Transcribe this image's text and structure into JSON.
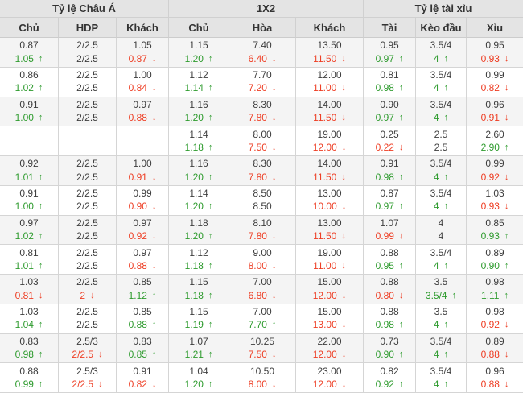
{
  "colors": {
    "trend_up_green": "#2e9b2e",
    "trend_down_red": "#ee3d23",
    "header_bg": "#e4e4e4",
    "stripe_bg": "#f4f4f4",
    "border": "#d5d5d5",
    "text": "#3e3e3e"
  },
  "icons": {
    "trend_up": "↑",
    "trend_down": "↓"
  },
  "table": {
    "groups": [
      {
        "label": "Tỷ lệ Châu Á"
      },
      {
        "label": "1X2"
      },
      {
        "label": "Tỷ lệ tài xỉu"
      }
    ],
    "columns": [
      "Chủ",
      "HDP",
      "Khách",
      "Chủ",
      "Hòa",
      "Khách",
      "Tài",
      "Kèo đầu",
      "Xỉu"
    ],
    "rows": [
      {
        "cells": [
          {
            "top": "0.87",
            "bottom": "1.05",
            "trend": "up"
          },
          {
            "top": "2/2.5",
            "bottom": "2/2.5",
            "trend": "none"
          },
          {
            "top": "1.05",
            "bottom": "0.87",
            "trend": "down"
          },
          {
            "top": "1.15",
            "bottom": "1.20",
            "trend": "up"
          },
          {
            "top": "7.40",
            "bottom": "6.40",
            "trend": "down"
          },
          {
            "top": "13.50",
            "bottom": "11.50",
            "trend": "down"
          },
          {
            "top": "0.95",
            "bottom": "0.97",
            "trend": "up"
          },
          {
            "top": "3.5/4",
            "bottom": "4",
            "trend": "up"
          },
          {
            "top": "0.95",
            "bottom": "0.93",
            "trend": "down"
          }
        ]
      },
      {
        "cells": [
          {
            "top": "0.86",
            "bottom": "1.02",
            "trend": "up"
          },
          {
            "top": "2/2.5",
            "bottom": "2/2.5",
            "trend": "none"
          },
          {
            "top": "1.00",
            "bottom": "0.84",
            "trend": "down"
          },
          {
            "top": "1.12",
            "bottom": "1.14",
            "trend": "up"
          },
          {
            "top": "7.70",
            "bottom": "7.20",
            "trend": "down"
          },
          {
            "top": "12.00",
            "bottom": "11.00",
            "trend": "down"
          },
          {
            "top": "0.81",
            "bottom": "0.98",
            "trend": "up"
          },
          {
            "top": "3.5/4",
            "bottom": "4",
            "trend": "up"
          },
          {
            "top": "0.99",
            "bottom": "0.82",
            "trend": "down"
          }
        ]
      },
      {
        "cells": [
          {
            "top": "0.91",
            "bottom": "1.00",
            "trend": "up"
          },
          {
            "top": "2/2.5",
            "bottom": "2/2.5",
            "trend": "none"
          },
          {
            "top": "0.97",
            "bottom": "0.88",
            "trend": "down"
          },
          {
            "top": "1.16",
            "bottom": "1.20",
            "trend": "up"
          },
          {
            "top": "8.30",
            "bottom": "7.80",
            "trend": "down"
          },
          {
            "top": "14.00",
            "bottom": "11.50",
            "trend": "down"
          },
          {
            "top": "0.90",
            "bottom": "0.97",
            "trend": "up"
          },
          {
            "top": "3.5/4",
            "bottom": "4",
            "trend": "up"
          },
          {
            "top": "0.96",
            "bottom": "0.91",
            "trend": "down"
          }
        ]
      },
      {
        "cells": [
          {
            "top": "",
            "bottom": "",
            "trend": "none"
          },
          {
            "top": "",
            "bottom": "",
            "trend": "none"
          },
          {
            "top": "",
            "bottom": "",
            "trend": "none"
          },
          {
            "top": "1.14",
            "bottom": "1.18",
            "trend": "up"
          },
          {
            "top": "8.00",
            "bottom": "7.50",
            "trend": "down"
          },
          {
            "top": "19.00",
            "bottom": "12.00",
            "trend": "down"
          },
          {
            "top": "0.25",
            "bottom": "0.22",
            "trend": "down"
          },
          {
            "top": "2.5",
            "bottom": "2.5",
            "trend": "none"
          },
          {
            "top": "2.60",
            "bottom": "2.90",
            "trend": "up"
          }
        ]
      },
      {
        "cells": [
          {
            "top": "0.92",
            "bottom": "1.01",
            "trend": "up"
          },
          {
            "top": "2/2.5",
            "bottom": "2/2.5",
            "trend": "none"
          },
          {
            "top": "1.00",
            "bottom": "0.91",
            "trend": "down"
          },
          {
            "top": "1.16",
            "bottom": "1.20",
            "trend": "up"
          },
          {
            "top": "8.30",
            "bottom": "7.80",
            "trend": "down"
          },
          {
            "top": "14.00",
            "bottom": "11.50",
            "trend": "down"
          },
          {
            "top": "0.91",
            "bottom": "0.98",
            "trend": "up"
          },
          {
            "top": "3.5/4",
            "bottom": "4",
            "trend": "up"
          },
          {
            "top": "0.99",
            "bottom": "0.92",
            "trend": "down"
          }
        ]
      },
      {
        "cells": [
          {
            "top": "0.91",
            "bottom": "1.00",
            "trend": "up"
          },
          {
            "top": "2/2.5",
            "bottom": "2/2.5",
            "trend": "none"
          },
          {
            "top": "0.99",
            "bottom": "0.90",
            "trend": "down"
          },
          {
            "top": "1.14",
            "bottom": "1.20",
            "trend": "up"
          },
          {
            "top": "8.50",
            "bottom": "8.50",
            "trend": "none"
          },
          {
            "top": "13.00",
            "bottom": "10.00",
            "trend": "down"
          },
          {
            "top": "0.87",
            "bottom": "0.97",
            "trend": "up"
          },
          {
            "top": "3.5/4",
            "bottom": "4",
            "trend": "up"
          },
          {
            "top": "1.03",
            "bottom": "0.93",
            "trend": "down"
          }
        ]
      },
      {
        "cells": [
          {
            "top": "0.97",
            "bottom": "1.02",
            "trend": "up"
          },
          {
            "top": "2/2.5",
            "bottom": "2/2.5",
            "trend": "none"
          },
          {
            "top": "0.97",
            "bottom": "0.92",
            "trend": "down"
          },
          {
            "top": "1.18",
            "bottom": "1.20",
            "trend": "up"
          },
          {
            "top": "8.10",
            "bottom": "7.80",
            "trend": "down"
          },
          {
            "top": "13.00",
            "bottom": "11.50",
            "trend": "down"
          },
          {
            "top": "1.07",
            "bottom": "0.99",
            "trend": "down"
          },
          {
            "top": "4",
            "bottom": "4",
            "trend": "none"
          },
          {
            "top": "0.85",
            "bottom": "0.93",
            "trend": "up"
          }
        ]
      },
      {
        "cells": [
          {
            "top": "0.81",
            "bottom": "1.01",
            "trend": "up"
          },
          {
            "top": "2/2.5",
            "bottom": "2/2.5",
            "trend": "none"
          },
          {
            "top": "0.97",
            "bottom": "0.88",
            "trend": "down"
          },
          {
            "top": "1.12",
            "bottom": "1.18",
            "trend": "up"
          },
          {
            "top": "9.00",
            "bottom": "8.00",
            "trend": "down"
          },
          {
            "top": "19.00",
            "bottom": "11.00",
            "trend": "down"
          },
          {
            "top": "0.88",
            "bottom": "0.95",
            "trend": "up"
          },
          {
            "top": "3.5/4",
            "bottom": "4",
            "trend": "up"
          },
          {
            "top": "0.89",
            "bottom": "0.90",
            "trend": "up"
          }
        ]
      },
      {
        "cells": [
          {
            "top": "1.03",
            "bottom": "0.81",
            "trend": "down"
          },
          {
            "top": "2/2.5",
            "bottom": "2",
            "trend": "down"
          },
          {
            "top": "0.85",
            "bottom": "1.12",
            "trend": "up"
          },
          {
            "top": "1.15",
            "bottom": "1.18",
            "trend": "up"
          },
          {
            "top": "7.00",
            "bottom": "6.80",
            "trend": "down"
          },
          {
            "top": "15.00",
            "bottom": "12.00",
            "trend": "down"
          },
          {
            "top": "0.88",
            "bottom": "0.80",
            "trend": "down"
          },
          {
            "top": "3.5",
            "bottom": "3.5/4",
            "trend": "up"
          },
          {
            "top": "0.98",
            "bottom": "1.11",
            "trend": "up"
          }
        ]
      },
      {
        "cells": [
          {
            "top": "1.03",
            "bottom": "1.04",
            "trend": "up"
          },
          {
            "top": "2/2.5",
            "bottom": "2/2.5",
            "trend": "none"
          },
          {
            "top": "0.85",
            "bottom": "0.88",
            "trend": "up"
          },
          {
            "top": "1.15",
            "bottom": "1.19",
            "trend": "up"
          },
          {
            "top": "7.00",
            "bottom": "7.70",
            "trend": "up"
          },
          {
            "top": "15.00",
            "bottom": "13.00",
            "trend": "down"
          },
          {
            "top": "0.88",
            "bottom": "0.98",
            "trend": "up"
          },
          {
            "top": "3.5",
            "bottom": "4",
            "trend": "up"
          },
          {
            "top": "0.98",
            "bottom": "0.92",
            "trend": "down"
          }
        ]
      },
      {
        "cells": [
          {
            "top": "0.83",
            "bottom": "0.98",
            "trend": "up"
          },
          {
            "top": "2.5/3",
            "bottom": "2/2.5",
            "trend": "down"
          },
          {
            "top": "0.83",
            "bottom": "0.85",
            "trend": "up"
          },
          {
            "top": "1.07",
            "bottom": "1.21",
            "trend": "up"
          },
          {
            "top": "10.25",
            "bottom": "7.50",
            "trend": "down"
          },
          {
            "top": "22.00",
            "bottom": "12.00",
            "trend": "down"
          },
          {
            "top": "0.73",
            "bottom": "0.90",
            "trend": "up"
          },
          {
            "top": "3.5/4",
            "bottom": "4",
            "trend": "up"
          },
          {
            "top": "0.89",
            "bottom": "0.88",
            "trend": "down"
          }
        ]
      },
      {
        "cells": [
          {
            "top": "0.88",
            "bottom": "0.99",
            "trend": "up"
          },
          {
            "top": "2.5/3",
            "bottom": "2/2.5",
            "trend": "down"
          },
          {
            "top": "0.91",
            "bottom": "0.82",
            "trend": "down"
          },
          {
            "top": "1.04",
            "bottom": "1.20",
            "trend": "up"
          },
          {
            "top": "10.50",
            "bottom": "8.00",
            "trend": "down"
          },
          {
            "top": "23.00",
            "bottom": "12.00",
            "trend": "down"
          },
          {
            "top": "0.82",
            "bottom": "0.92",
            "trend": "up"
          },
          {
            "top": "3.5/4",
            "bottom": "4",
            "trend": "up"
          },
          {
            "top": "0.96",
            "bottom": "0.88",
            "trend": "down"
          }
        ]
      }
    ]
  }
}
